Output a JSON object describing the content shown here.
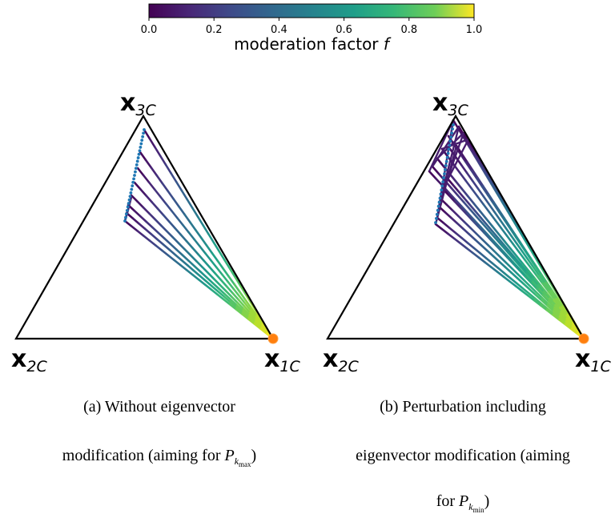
{
  "colorbar": {
    "title_text": "moderation factor ",
    "title_var": "f",
    "ticks": [
      "0.0",
      "0.2",
      "0.4",
      "0.6",
      "0.8",
      "1.0"
    ],
    "range": [
      0,
      1
    ]
  },
  "vertices": {
    "x3": {
      "bold": "x",
      "sub": "3C"
    },
    "x2": {
      "bold": "x",
      "sub": "2C"
    },
    "x1": {
      "bold": "x",
      "sub": "1C"
    }
  },
  "captions": {
    "a": {
      "line1": "(a) Without eigenvector",
      "line2_pre": "modification (aiming for ",
      "line2_var": "P",
      "line2_sub": "k",
      "line2_subsub": "max",
      "line2_post": ")"
    },
    "b": {
      "line1": "(b) Perturbation including",
      "line2": "eigenvector modification (aiming",
      "line3_pre": "for ",
      "line3_var": "P",
      "line3_sub": "k",
      "line3_subsub": "min",
      "line3_post": ")"
    }
  },
  "colors": {
    "triangle": "#000000",
    "marker_inner": "#ff7f0e",
    "marker_outer": "#ff7f0e",
    "points": "#1f77b4",
    "colormap": "viridis"
  }
}
